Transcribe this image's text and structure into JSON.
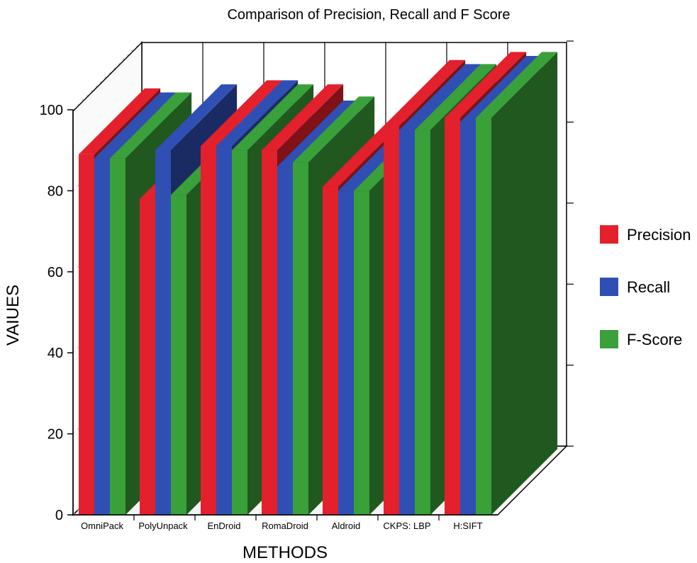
{
  "chart_data": {
    "type": "bar",
    "title": "Comparison of Precision, Recall and F Score",
    "xlabel": "METHODS",
    "ylabel": "VAIUES",
    "ylim": [
      0,
      100
    ],
    "yticks": [
      0,
      20,
      40,
      60,
      80,
      100
    ],
    "grid": false,
    "legend_position": "right",
    "categories": [
      "OmniPack",
      "PolyUnpack",
      "EnDroid",
      "RomaDroid",
      "Aldroid",
      "CKPS: LBP",
      "H:SIFT"
    ],
    "series": [
      {
        "name": "Precision",
        "color": "#e3202c",
        "values": [
          89,
          78,
          91,
          90,
          81,
          96,
          98
        ]
      },
      {
        "name": "Recall",
        "color": "#2f4fb4",
        "values": [
          88,
          90,
          91,
          86,
          80,
          95,
          97
        ]
      },
      {
        "name": "F-Score",
        "color": "#3aa03a",
        "values": [
          88,
          79,
          90,
          87,
          80,
          95,
          98
        ]
      }
    ]
  }
}
